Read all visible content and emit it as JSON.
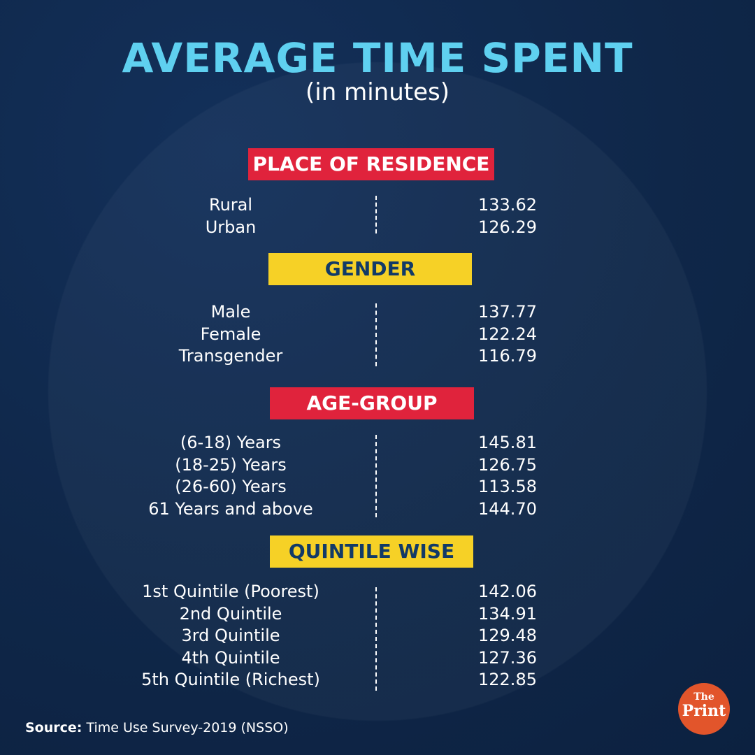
{
  "title": "AVERAGE TIME SPENT",
  "subtitle": "(in minutes)",
  "sections": [
    {
      "heading": "PLACE OF RESIDENCE",
      "color": "#e0233c",
      "rows": [
        {
          "label": "Rural",
          "value": "133.62"
        },
        {
          "label": "Urban",
          "value": "126.29"
        }
      ]
    },
    {
      "heading": "GENDER",
      "color": "#f6d126",
      "rows": [
        {
          "label": "Male",
          "value": "137.77"
        },
        {
          "label": "Female",
          "value": "122.24"
        },
        {
          "label": "Transgender",
          "value": "116.79"
        }
      ]
    },
    {
      "heading": "AGE-GROUP",
      "color": "#e0233c",
      "rows": [
        {
          "label": "(6-18) Years",
          "value": "145.81"
        },
        {
          "label": "(18-25) Years",
          "value": "126.75"
        },
        {
          "label": "(26-60) Years",
          "value": "113.58"
        },
        {
          "label": "61 Years and above",
          "value": "144.70"
        }
      ]
    },
    {
      "heading": "QUINTILE WISE",
      "color": "#f6d126",
      "rows": [
        {
          "label": "1st Quintile (Poorest)",
          "value": "142.06"
        },
        {
          "label": "2nd Quintile",
          "value": "134.91"
        },
        {
          "label": "3rd Quintile",
          "value": "129.48"
        },
        {
          "label": "4th Quintile",
          "value": "127.36"
        },
        {
          "label": "5th Quintile (Richest)",
          "value": "122.85"
        }
      ]
    }
  ],
  "source": {
    "label": "Source:",
    "text": "Time Use Survey-2019 (NSSO)"
  },
  "logo": {
    "the": "The",
    "print": "Print"
  }
}
